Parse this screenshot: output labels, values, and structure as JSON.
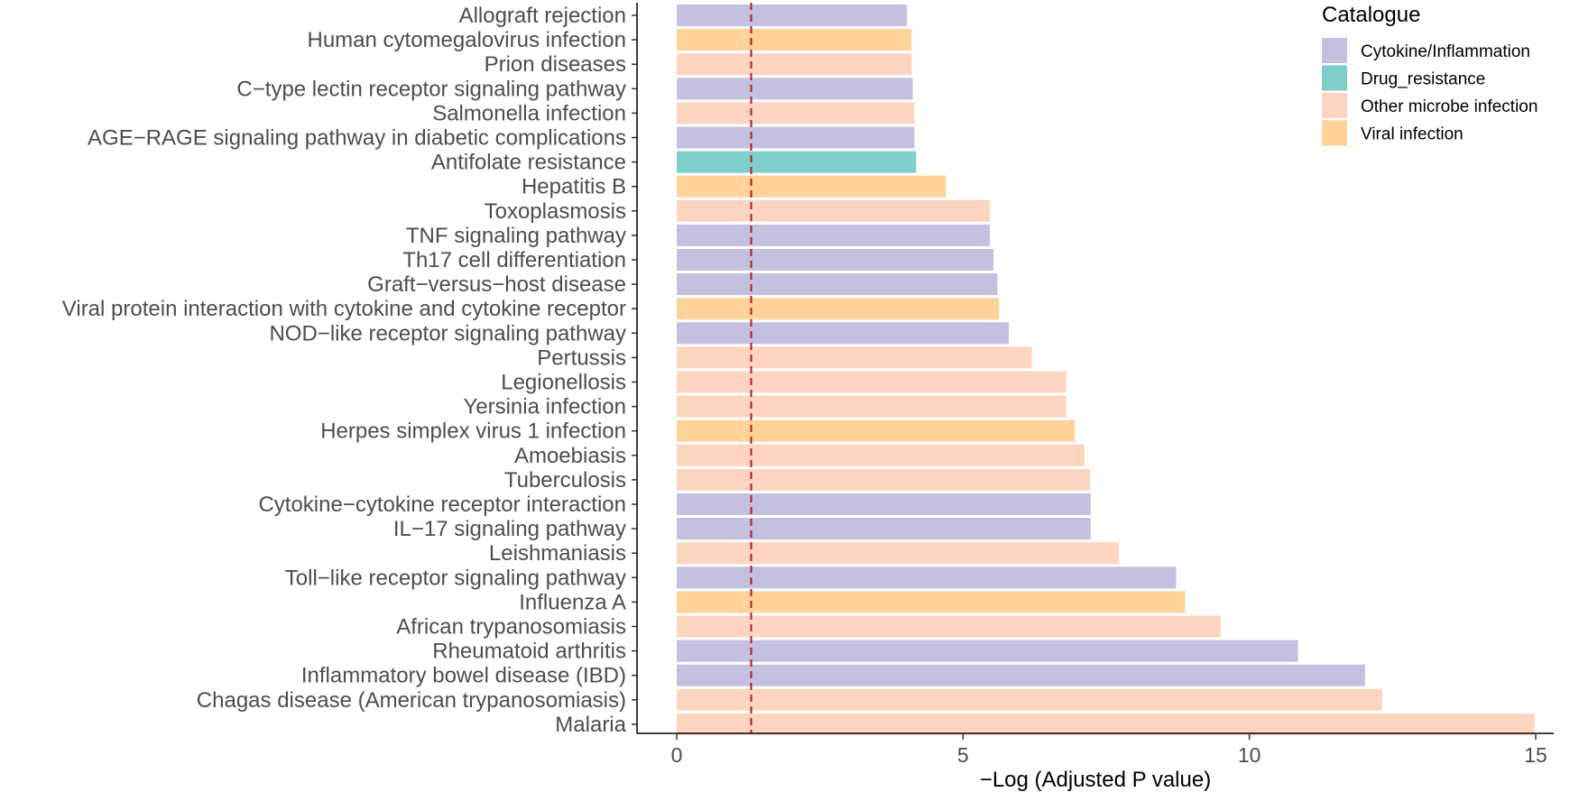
{
  "chart_data": {
    "type": "bar",
    "orientation": "horizontal",
    "title": "",
    "xlabel": "−Log (Adjusted P value)",
    "ylabel": "",
    "xlim": [
      0,
      15
    ],
    "xticks": [
      0,
      5,
      10,
      15
    ],
    "threshold_line": {
      "x": 1.3,
      "style": "dashed",
      "color": "#b2182b"
    },
    "legend": {
      "title": "Catalogue",
      "placement": "top-right",
      "entries": [
        {
          "name": "Cytokine/Inflammation",
          "color": "#c4c1e0"
        },
        {
          "name": "Drug_resistance",
          "color": "#7ecfcb"
        },
        {
          "name": "Other microbe infection",
          "color": "#fdd5bf"
        },
        {
          "name": "Viral infection",
          "color": "#fed298"
        }
      ]
    },
    "bars": [
      {
        "label": "Allograft rejection",
        "value": 4.02,
        "group": "Cytokine/Inflammation"
      },
      {
        "label": "Human cytomegalovirus infection",
        "value": 4.1,
        "group": "Viral infection"
      },
      {
        "label": "Prion diseases",
        "value": 4.1,
        "group": "Other microbe infection"
      },
      {
        "label": "C−type lectin receptor signaling pathway",
        "value": 4.12,
        "group": "Cytokine/Inflammation"
      },
      {
        "label": "Salmonella infection",
        "value": 4.15,
        "group": "Other microbe infection"
      },
      {
        "label": "AGE−RAGE signaling pathway in diabetic complications",
        "value": 4.15,
        "group": "Cytokine/Inflammation"
      },
      {
        "label": "Antifolate resistance",
        "value": 4.18,
        "group": "Drug_resistance"
      },
      {
        "label": "Hepatitis B",
        "value": 4.7,
        "group": "Viral infection"
      },
      {
        "label": "Toxoplasmosis",
        "value": 5.47,
        "group": "Other microbe infection"
      },
      {
        "label": "TNF signaling pathway",
        "value": 5.47,
        "group": "Cytokine/Inflammation"
      },
      {
        "label": "Th17 cell differentiation",
        "value": 5.53,
        "group": "Cytokine/Inflammation"
      },
      {
        "label": "Graft−versus−host disease",
        "value": 5.6,
        "group": "Cytokine/Inflammation"
      },
      {
        "label": "Viral protein interaction with cytokine and cytokine receptor",
        "value": 5.63,
        "group": "Viral infection"
      },
      {
        "label": "NOD−like receptor signaling pathway",
        "value": 5.8,
        "group": "Cytokine/Inflammation"
      },
      {
        "label": "Pertussis",
        "value": 6.2,
        "group": "Other microbe infection"
      },
      {
        "label": "Legionellosis",
        "value": 6.8,
        "group": "Other microbe infection"
      },
      {
        "label": "Yersinia infection",
        "value": 6.8,
        "group": "Other microbe infection"
      },
      {
        "label": "Herpes simplex virus 1 infection",
        "value": 6.95,
        "group": "Viral infection"
      },
      {
        "label": "Amoebiasis",
        "value": 7.12,
        "group": "Other microbe infection"
      },
      {
        "label": "Tuberculosis",
        "value": 7.22,
        "group": "Other microbe infection"
      },
      {
        "label": "Cytokine−cytokine receptor interaction",
        "value": 7.23,
        "group": "Cytokine/Inflammation"
      },
      {
        "label": "IL−17 signaling pathway",
        "value": 7.23,
        "group": "Cytokine/Inflammation"
      },
      {
        "label": "Leishmaniasis",
        "value": 7.72,
        "group": "Other microbe infection"
      },
      {
        "label": "Toll−like receptor signaling pathway",
        "value": 8.72,
        "group": "Cytokine/Inflammation"
      },
      {
        "label": "Influenza A",
        "value": 8.88,
        "group": "Viral infection"
      },
      {
        "label": "African trypanosomiasis",
        "value": 9.5,
        "group": "Other microbe infection"
      },
      {
        "label": "Rheumatoid arthritis",
        "value": 10.85,
        "group": "Cytokine/Inflammation"
      },
      {
        "label": "Inflammatory bowel disease (IBD)",
        "value": 12.02,
        "group": "Cytokine/Inflammation"
      },
      {
        "label": "Chagas disease (American trypanosomiasis)",
        "value": 12.32,
        "group": "Other microbe infection"
      },
      {
        "label": "Malaria",
        "value": 14.98,
        "group": "Other microbe infection"
      }
    ]
  }
}
